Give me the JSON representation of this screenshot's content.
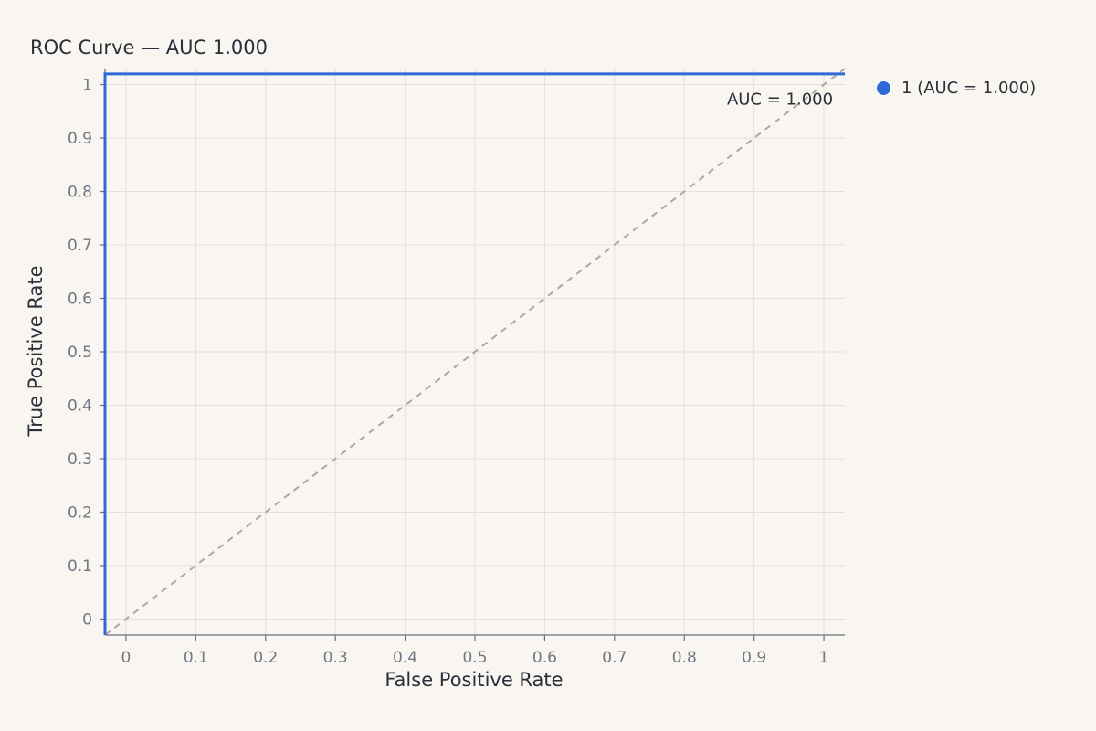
{
  "chart_data": {
    "type": "line",
    "title": "ROC Curve — AUC 1.000",
    "xlabel": "False Positive Rate",
    "ylabel": "True Positive Rate",
    "xlim": [
      -0.03,
      1.03
    ],
    "ylim": [
      -0.03,
      1.03
    ],
    "xticks": [
      0,
      0.1,
      0.2,
      0.3,
      0.4,
      0.5,
      0.6,
      0.7,
      0.8,
      0.9,
      1
    ],
    "yticks": [
      0,
      0.1,
      0.2,
      0.3,
      0.4,
      0.5,
      0.6,
      0.7,
      0.8,
      0.9,
      1
    ],
    "xtick_labels": [
      "0",
      "0.1",
      "0.2",
      "0.3",
      "0.4",
      "0.5",
      "0.6",
      "0.7",
      "0.8",
      "0.9",
      "1"
    ],
    "ytick_labels": [
      "0",
      "0.1",
      "0.2",
      "0.3",
      "0.4",
      "0.5",
      "0.6",
      "0.7",
      "0.8",
      "0.9",
      "1"
    ],
    "grid": true,
    "legend_position": "right",
    "series": [
      {
        "name": "1 (AUC = 1.000)",
        "color": "#2f68d8",
        "x": [
          -0.03,
          -0.03,
          1.03
        ],
        "y": [
          -0.03,
          1.02,
          1.02
        ]
      }
    ],
    "reference_line": {
      "x": [
        -0.03,
        1.03
      ],
      "y": [
        -0.03,
        1.03
      ],
      "color": "#a8a8a8",
      "style": "dashed"
    },
    "annotations": [
      {
        "text": "AUC = 1.000",
        "x": 1.0,
        "y": 0.99
      }
    ]
  }
}
